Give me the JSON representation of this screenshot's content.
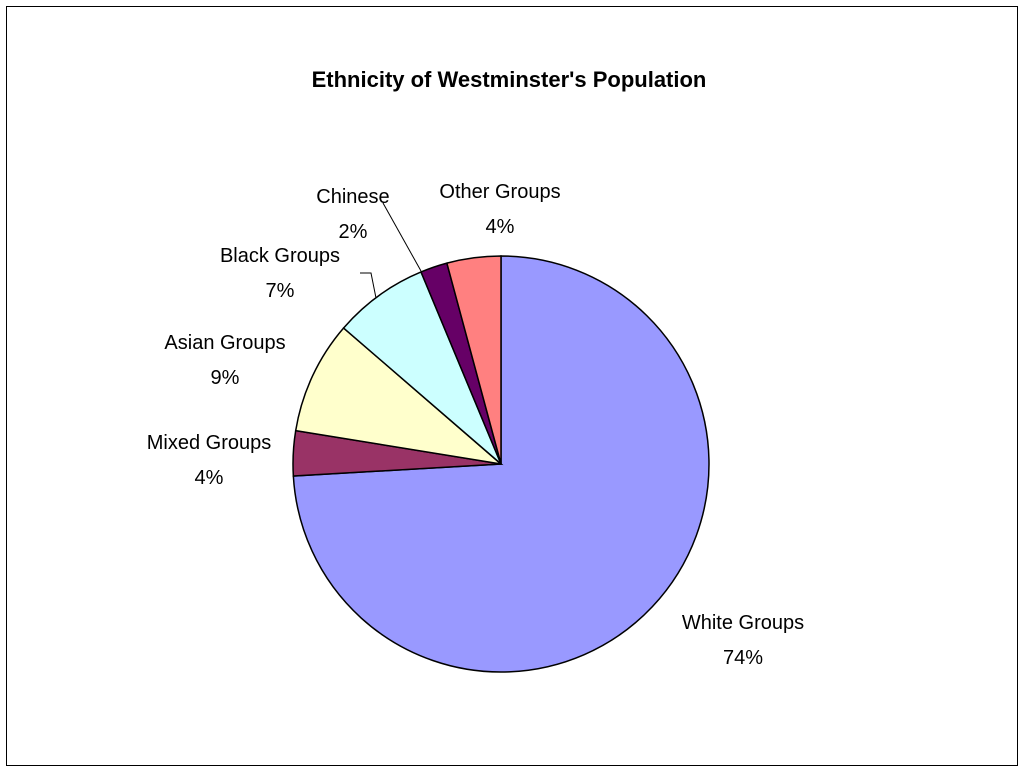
{
  "chart_data": {
    "type": "pie",
    "title": "Ethnicity of Westminster's Population",
    "start_angle_deg": 0,
    "direction": "clockwise",
    "slices": [
      {
        "label": "White Groups",
        "percent_label": "74%",
        "value": 74.3,
        "color": "#9999ff"
      },
      {
        "label": "Mixed Groups",
        "percent_label": "4%",
        "value": 3.5,
        "color": "#993366"
      },
      {
        "label": "Asian Groups",
        "percent_label": "9%",
        "value": 8.8,
        "color": "#ffffcc"
      },
      {
        "label": "Black Groups",
        "percent_label": "7%",
        "value": 7.4,
        "color": "#ccffff"
      },
      {
        "label": "Chinese",
        "percent_label": "2%",
        "value": 2.1,
        "color": "#660066"
      },
      {
        "label": "Other Groups",
        "percent_label": "4%",
        "value": 4.2,
        "color": "#ff8080"
      }
    ]
  }
}
